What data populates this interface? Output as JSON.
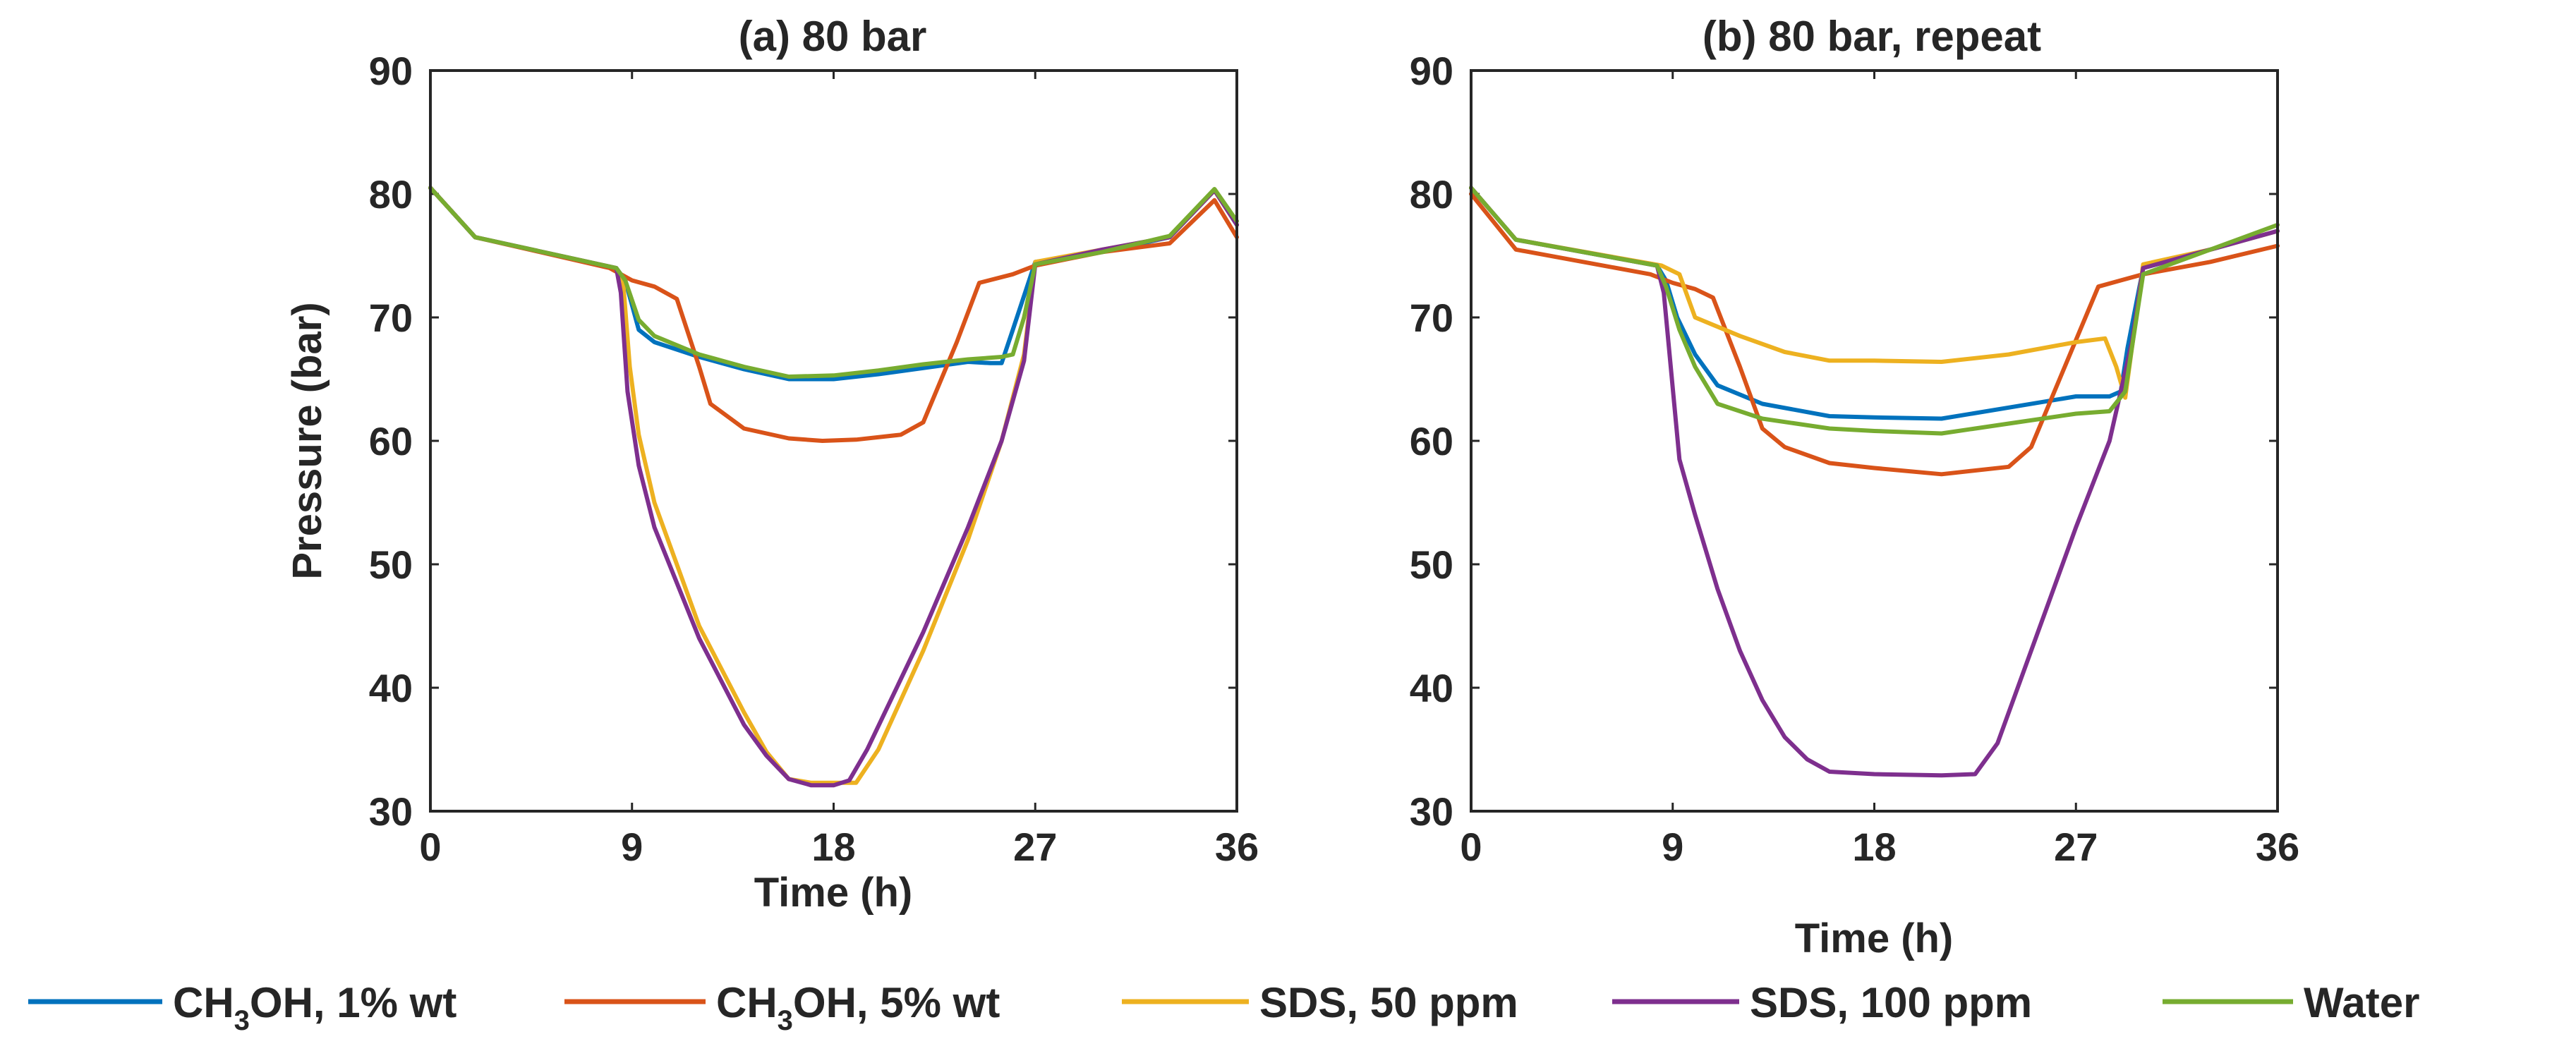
{
  "chart_data": [
    {
      "type": "line",
      "title": "(a) 80 bar",
      "xlabel": "Time (h)",
      "ylabel": "Pressure (bar)",
      "xlim": [
        0,
        36
      ],
      "ylim": [
        30,
        90
      ],
      "xticks": [
        0,
        9,
        18,
        27,
        36
      ],
      "yticks": [
        30,
        40,
        50,
        60,
        70,
        80,
        90
      ],
      "grid": false,
      "series": [
        {
          "name": "CH3OH, 1% wt",
          "color": "#0072BD",
          "x": [
            0,
            2,
            8.3,
            8.7,
            9.3,
            10,
            12,
            14,
            16,
            18,
            20,
            22,
            24,
            25,
            25.5,
            26,
            27,
            30,
            33,
            35,
            36
          ],
          "y": [
            80.5,
            76.5,
            74,
            73,
            69,
            68,
            66.8,
            65.8,
            65,
            65,
            65.4,
            65.9,
            66.4,
            66.3,
            66.3,
            69,
            74.5,
            75.3,
            76.5,
            80.3,
            77.5
          ]
        },
        {
          "name": "CH3OH, 5% wt",
          "color": "#D95319",
          "x": [
            0,
            2,
            8,
            9,
            10,
            11,
            12,
            12.5,
            14,
            16,
            17.5,
            19,
            21,
            22,
            23.5,
            24.5,
            26,
            27,
            30,
            33,
            35,
            36
          ],
          "y": [
            80.5,
            76.5,
            74,
            73,
            72.5,
            71.5,
            66,
            63,
            61,
            60.2,
            60,
            60.1,
            60.5,
            61.5,
            68,
            72.8,
            73.5,
            74.2,
            75.3,
            76,
            79.5,
            76.5
          ]
        },
        {
          "name": "SDS, 50 ppm",
          "color": "#EDB120",
          "x": [
            0,
            2,
            8.3,
            8.6,
            8.9,
            9.3,
            10,
            12,
            14,
            15,
            16,
            17,
            18,
            19,
            20,
            22,
            24,
            25.5,
            26.5,
            27,
            30,
            33,
            35,
            36
          ],
          "y": [
            80.5,
            76.5,
            74,
            73,
            66,
            60.5,
            55,
            45,
            38,
            34.8,
            32.6,
            32.3,
            32.3,
            32.3,
            35,
            43,
            52,
            60,
            67,
            74.5,
            75.5,
            76.5,
            80.3,
            77.5
          ]
        },
        {
          "name": "SDS, 100 ppm",
          "color": "#7E2F8E",
          "x": [
            0,
            2,
            8.3,
            8.5,
            8.8,
            9.3,
            10,
            12,
            14,
            15,
            16,
            17,
            18,
            18.7,
            19.5,
            22,
            24,
            25.5,
            26.5,
            27,
            30,
            33,
            35,
            36
          ],
          "y": [
            80.5,
            76.5,
            74,
            72,
            64,
            58,
            53,
            44,
            37,
            34.5,
            32.6,
            32.1,
            32.1,
            32.5,
            35,
            44.5,
            53,
            60,
            66.5,
            74.3,
            75.5,
            76.5,
            80.3,
            77.5
          ]
        },
        {
          "name": "Water",
          "color": "#77AC30",
          "x": [
            0,
            2,
            8.3,
            8.7,
            9.3,
            10,
            12,
            14,
            16,
            18,
            20,
            22,
            24,
            25.5,
            26,
            26.5,
            27,
            30,
            33,
            35,
            36
          ],
          "y": [
            80.5,
            76.5,
            74,
            73,
            69.8,
            68.5,
            67,
            66,
            65.2,
            65.3,
            65.7,
            66.2,
            66.6,
            66.8,
            67,
            70,
            74.3,
            75.3,
            76.6,
            80.4,
            77.8
          ]
        }
      ]
    },
    {
      "type": "line",
      "title": "(b) 80 bar, repeat",
      "xlabel": "Time (h)",
      "ylabel": "",
      "xlim": [
        0,
        36
      ],
      "ylim": [
        30,
        90
      ],
      "xticks": [
        0,
        9,
        18,
        27,
        36
      ],
      "yticks": [
        30,
        40,
        50,
        60,
        70,
        80,
        90
      ],
      "grid": false,
      "series": [
        {
          "name": "CH3OH, 1% wt",
          "color": "#0072BD",
          "x": [
            0,
            2,
            8.3,
            8.7,
            9.2,
            10,
            11,
            13,
            16,
            18,
            21,
            24,
            27,
            28.5,
            29,
            29.3,
            30,
            33,
            36
          ],
          "y": [
            80.5,
            76.3,
            74.2,
            73,
            70,
            67,
            64.5,
            63,
            62,
            61.9,
            61.8,
            62.7,
            63.6,
            63.6,
            64,
            67.5,
            74,
            75.5,
            77
          ]
        },
        {
          "name": "CH3OH, 5% wt",
          "color": "#D95319",
          "x": [
            0,
            2,
            8,
            9,
            10,
            10.8,
            12,
            13,
            14,
            16,
            18,
            21,
            24,
            25,
            26.5,
            28,
            29,
            30,
            33,
            36
          ],
          "y": [
            80,
            75.5,
            73.5,
            72.8,
            72.3,
            71.6,
            66,
            61,
            59.5,
            58.2,
            57.8,
            57.3,
            57.9,
            59.5,
            66,
            72.5,
            73,
            73.5,
            74.5,
            75.8
          ]
        },
        {
          "name": "SDS, 50 ppm",
          "color": "#EDB120",
          "x": [
            0,
            2,
            8.5,
            9.3,
            10,
            12,
            14,
            16,
            18,
            21,
            24,
            27,
            28.3,
            28.8,
            29.2,
            30,
            33,
            36
          ],
          "y": [
            80.5,
            76.3,
            74.2,
            73.5,
            70,
            68.5,
            67.2,
            66.5,
            66.5,
            66.4,
            67,
            68,
            68.3,
            66,
            63.5,
            74.3,
            75.5,
            77
          ]
        },
        {
          "name": "SDS, 100 ppm",
          "color": "#7E2F8E",
          "x": [
            0,
            2,
            8.3,
            8.6,
            9.3,
            10,
            11,
            12,
            13,
            14,
            15,
            16,
            18,
            21,
            22.5,
            23.5,
            25,
            27,
            28.5,
            29.5,
            30,
            33,
            36
          ],
          "y": [
            80.5,
            76.3,
            74.2,
            72,
            58.5,
            54,
            48,
            43,
            39,
            36,
            34.2,
            33.2,
            33,
            32.9,
            33,
            35.5,
            43,
            53,
            60,
            68,
            74,
            75.5,
            77
          ]
        },
        {
          "name": "Water",
          "color": "#77AC30",
          "x": [
            0,
            2,
            8.3,
            8.7,
            9.3,
            10,
            11,
            13,
            16,
            18,
            21,
            24,
            27,
            28.5,
            29.2,
            30,
            33,
            36
          ],
          "y": [
            80.5,
            76.3,
            74.2,
            72.5,
            69,
            66,
            63,
            61.8,
            61,
            60.8,
            60.6,
            61.4,
            62.2,
            62.4,
            64,
            73.5,
            75.5,
            77.5
          ]
        }
      ]
    }
  ],
  "legend": {
    "placement": "bottom",
    "entries": [
      {
        "main": "CH",
        "sub": "3",
        "tail": "OH, 1% wt",
        "color": "#0072BD"
      },
      {
        "main": "CH",
        "sub": "3",
        "tail": "OH, 5% wt",
        "color": "#D95319"
      },
      {
        "main": "SDS, 50 ppm",
        "sub": "",
        "tail": "",
        "color": "#EDB120"
      },
      {
        "main": "SDS, 100 ppm",
        "sub": "",
        "tail": "",
        "color": "#7E2F8E"
      },
      {
        "main": "Water",
        "sub": "",
        "tail": "",
        "color": "#77AC30"
      }
    ]
  }
}
